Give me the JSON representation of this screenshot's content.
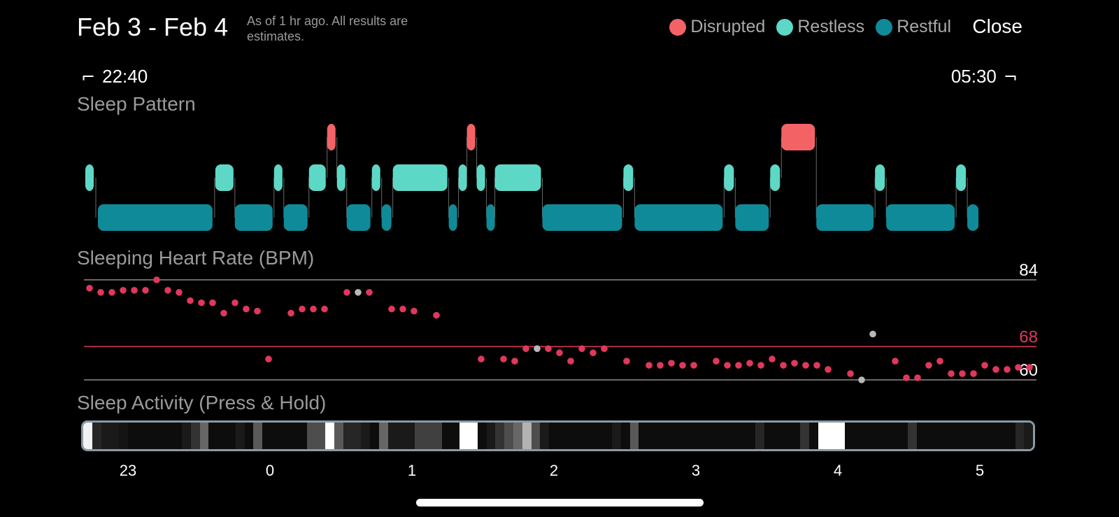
{
  "header": {
    "date_range": "Feb 3 - Feb 4",
    "as_of": "As of 1 hr ago. All results are estimates.",
    "close_label": "Close"
  },
  "legend": [
    {
      "label": "Disrupted",
      "color": "#f36366"
    },
    {
      "label": "Restless",
      "color": "#5ed8c6"
    },
    {
      "label": "Restful",
      "color": "#0f8a98"
    }
  ],
  "times": {
    "start": "22:40",
    "end": "05:30"
  },
  "sections": {
    "sleep_pattern": "Sleep Pattern",
    "heart_rate": "Sleeping Heart Rate (BPM)",
    "activity": "Sleep Activity (Press & Hold)"
  },
  "colors": {
    "disrupted": "#f36366",
    "restless": "#5ed8c6",
    "restful": "#0f8a98",
    "hr_dot": "#e0385b",
    "hr_dot_gray": "#b8b8b8",
    "avg_line": "#e0385b",
    "ref_line": "#8a8a8a"
  },
  "chart_data": [
    {
      "type": "timeline",
      "title": "Sleep Pattern",
      "x_range": [
        "22:40",
        "05:30"
      ],
      "states": [
        "Disrupted",
        "Restless",
        "Restful"
      ],
      "segments": [
        {
          "s": 0.0,
          "e": 0.06,
          "st": 1
        },
        {
          "s": 0.09,
          "e": 0.92,
          "st": 2
        },
        {
          "s": 0.93,
          "e": 1.07,
          "st": 1
        },
        {
          "s": 1.07,
          "e": 1.35,
          "st": 2
        },
        {
          "s": 1.35,
          "e": 1.42,
          "st": 1
        },
        {
          "s": 1.42,
          "e": 1.6,
          "st": 2
        },
        {
          "s": 1.6,
          "e": 1.73,
          "st": 1
        },
        {
          "s": 1.73,
          "e": 1.8,
          "st": 0
        },
        {
          "s": 1.8,
          "e": 1.87,
          "st": 1
        },
        {
          "s": 1.87,
          "e": 2.05,
          "st": 2
        },
        {
          "s": 2.05,
          "e": 2.12,
          "st": 1
        },
        {
          "s": 2.12,
          "e": 2.2,
          "st": 2
        },
        {
          "s": 2.2,
          "e": 2.6,
          "st": 1
        },
        {
          "s": 2.6,
          "e": 2.67,
          "st": 2
        },
        {
          "s": 2.67,
          "e": 2.73,
          "st": 1
        },
        {
          "s": 2.73,
          "e": 2.8,
          "st": 0
        },
        {
          "s": 2.8,
          "e": 2.87,
          "st": 1
        },
        {
          "s": 2.87,
          "e": 2.93,
          "st": 2
        },
        {
          "s": 2.93,
          "e": 3.27,
          "st": 1
        },
        {
          "s": 3.27,
          "e": 3.85,
          "st": 2
        },
        {
          "s": 3.85,
          "e": 3.93,
          "st": 1
        },
        {
          "s": 3.93,
          "e": 4.57,
          "st": 2
        },
        {
          "s": 4.57,
          "e": 4.65,
          "st": 1
        },
        {
          "s": 4.65,
          "e": 4.9,
          "st": 2
        },
        {
          "s": 4.9,
          "e": 4.98,
          "st": 1
        },
        {
          "s": 4.98,
          "e": 5.23,
          "st": 0
        },
        {
          "s": 5.23,
          "e": 5.65,
          "st": 2
        },
        {
          "s": 5.65,
          "e": 5.73,
          "st": 1
        },
        {
          "s": 5.73,
          "e": 6.23,
          "st": 2
        },
        {
          "s": 6.23,
          "e": 6.31,
          "st": 1
        },
        {
          "s": 6.31,
          "e": 6.4,
          "st": 2
        }
      ]
    },
    {
      "type": "scatter",
      "title": "Sleeping Heart Rate (BPM)",
      "ylim": [
        60,
        84
      ],
      "average_line": 68,
      "ref_lines": [
        84,
        60
      ],
      "points": [
        {
          "x": 0.0,
          "y": 82
        },
        {
          "x": 0.08,
          "y": 81
        },
        {
          "x": 0.16,
          "y": 81
        },
        {
          "x": 0.24,
          "y": 81.5
        },
        {
          "x": 0.32,
          "y": 81.5
        },
        {
          "x": 0.4,
          "y": 81.5
        },
        {
          "x": 0.48,
          "y": 84
        },
        {
          "x": 0.56,
          "y": 81.5
        },
        {
          "x": 0.64,
          "y": 81
        },
        {
          "x": 0.72,
          "y": 79
        },
        {
          "x": 0.8,
          "y": 78.5
        },
        {
          "x": 0.88,
          "y": 78.5
        },
        {
          "x": 0.96,
          "y": 76
        },
        {
          "x": 1.04,
          "y": 78.5
        },
        {
          "x": 1.12,
          "y": 77
        },
        {
          "x": 1.2,
          "y": 76.5
        },
        {
          "x": 1.28,
          "y": 65
        },
        {
          "x": 1.44,
          "y": 76
        },
        {
          "x": 1.52,
          "y": 77
        },
        {
          "x": 1.6,
          "y": 77
        },
        {
          "x": 1.68,
          "y": 77
        },
        {
          "x": 1.84,
          "y": 81
        },
        {
          "x": 1.92,
          "y": 81,
          "g": true
        },
        {
          "x": 2.0,
          "y": 81
        },
        {
          "x": 2.16,
          "y": 77
        },
        {
          "x": 2.24,
          "y": 77
        },
        {
          "x": 2.32,
          "y": 76.5
        },
        {
          "x": 2.48,
          "y": 75.5
        },
        {
          "x": 2.8,
          "y": 65
        },
        {
          "x": 2.96,
          "y": 65
        },
        {
          "x": 3.04,
          "y": 64.5
        },
        {
          "x": 3.12,
          "y": 67.5
        },
        {
          "x": 3.2,
          "y": 67.5,
          "g": true
        },
        {
          "x": 3.28,
          "y": 67.5
        },
        {
          "x": 3.36,
          "y": 66.5
        },
        {
          "x": 3.44,
          "y": 64.5
        },
        {
          "x": 3.52,
          "y": 67.5
        },
        {
          "x": 3.6,
          "y": 66.5
        },
        {
          "x": 3.68,
          "y": 67.5
        },
        {
          "x": 3.84,
          "y": 64.5
        },
        {
          "x": 4.0,
          "y": 63.5
        },
        {
          "x": 4.08,
          "y": 63.5
        },
        {
          "x": 4.16,
          "y": 64
        },
        {
          "x": 4.24,
          "y": 63.5
        },
        {
          "x": 4.32,
          "y": 63.5
        },
        {
          "x": 4.48,
          "y": 64.5
        },
        {
          "x": 4.56,
          "y": 63.5
        },
        {
          "x": 4.64,
          "y": 63.5
        },
        {
          "x": 4.72,
          "y": 64
        },
        {
          "x": 4.8,
          "y": 63.5
        },
        {
          "x": 4.88,
          "y": 65
        },
        {
          "x": 4.96,
          "y": 63.5
        },
        {
          "x": 5.04,
          "y": 64
        },
        {
          "x": 5.12,
          "y": 63.5
        },
        {
          "x": 5.2,
          "y": 63.5
        },
        {
          "x": 5.28,
          "y": 62.5
        },
        {
          "x": 5.44,
          "y": 61.5
        },
        {
          "x": 5.52,
          "y": 60,
          "g": true
        },
        {
          "x": 5.6,
          "y": 71,
          "g": true
        },
        {
          "x": 5.76,
          "y": 64.5
        },
        {
          "x": 5.84,
          "y": 60.5
        },
        {
          "x": 5.92,
          "y": 60.5
        },
        {
          "x": 6.0,
          "y": 63.5
        },
        {
          "x": 6.08,
          "y": 64.5
        },
        {
          "x": 6.16,
          "y": 61.5
        },
        {
          "x": 6.24,
          "y": 61.5
        },
        {
          "x": 6.32,
          "y": 61.5
        },
        {
          "x": 6.4,
          "y": 63.5
        },
        {
          "x": 6.48,
          "y": 62.5
        },
        {
          "x": 6.56,
          "y": 62.5
        },
        {
          "x": 6.64,
          "y": 63
        },
        {
          "x": 6.72,
          "y": 63
        }
      ],
      "ref_labels": [
        {
          "value": "84",
          "color": "#ffffff"
        },
        {
          "value": "68",
          "color": "#e0385b"
        },
        {
          "value": "60",
          "color": "#ffffff"
        }
      ]
    },
    {
      "type": "heatmap",
      "title": "Sleep Activity (Press & Hold)",
      "values": [
        0.95,
        0.15,
        0.1,
        0.1,
        0.08,
        0.05,
        0.05,
        0.05,
        0.05,
        0.05,
        0.05,
        0.1,
        0.2,
        0.4,
        0.05,
        0.05,
        0.05,
        0.1,
        0.05,
        0.35,
        0.05,
        0.05,
        0.05,
        0.05,
        0.05,
        0.3,
        0.3,
        1.0,
        0.35,
        0.15,
        0.15,
        0.1,
        0.05,
        0.4,
        0.1,
        0.1,
        0.1,
        0.25,
        0.25,
        0.25,
        0.05,
        0.05,
        1.0,
        1.0,
        0.05,
        0.1,
        0.2,
        0.3,
        0.4,
        0.7,
        0.3,
        0.1,
        0.05,
        0.05,
        0.05,
        0.05,
        0.05,
        0.05,
        0.05,
        0.1,
        0.05,
        0.35,
        0.05,
        0.05,
        0.05,
        0.05,
        0.05,
        0.05,
        0.05,
        0.05,
        0.05,
        0.05,
        0.05,
        0.05,
        0.05,
        0.15,
        0.05,
        0.05,
        0.05,
        0.05,
        0.2,
        0.05,
        1.0,
        1.0,
        1.0,
        0.05,
        0.05,
        0.05,
        0.05,
        0.05,
        0.05,
        0.05,
        0.2,
        0.05,
        0.05,
        0.05,
        0.05,
        0.05,
        0.05,
        0.05,
        0.05,
        0.05,
        0.05,
        0.05,
        0.15,
        0.1
      ],
      "x_ticks": [
        "23",
        "0",
        "1",
        "2",
        "3",
        "4",
        "5"
      ]
    }
  ]
}
